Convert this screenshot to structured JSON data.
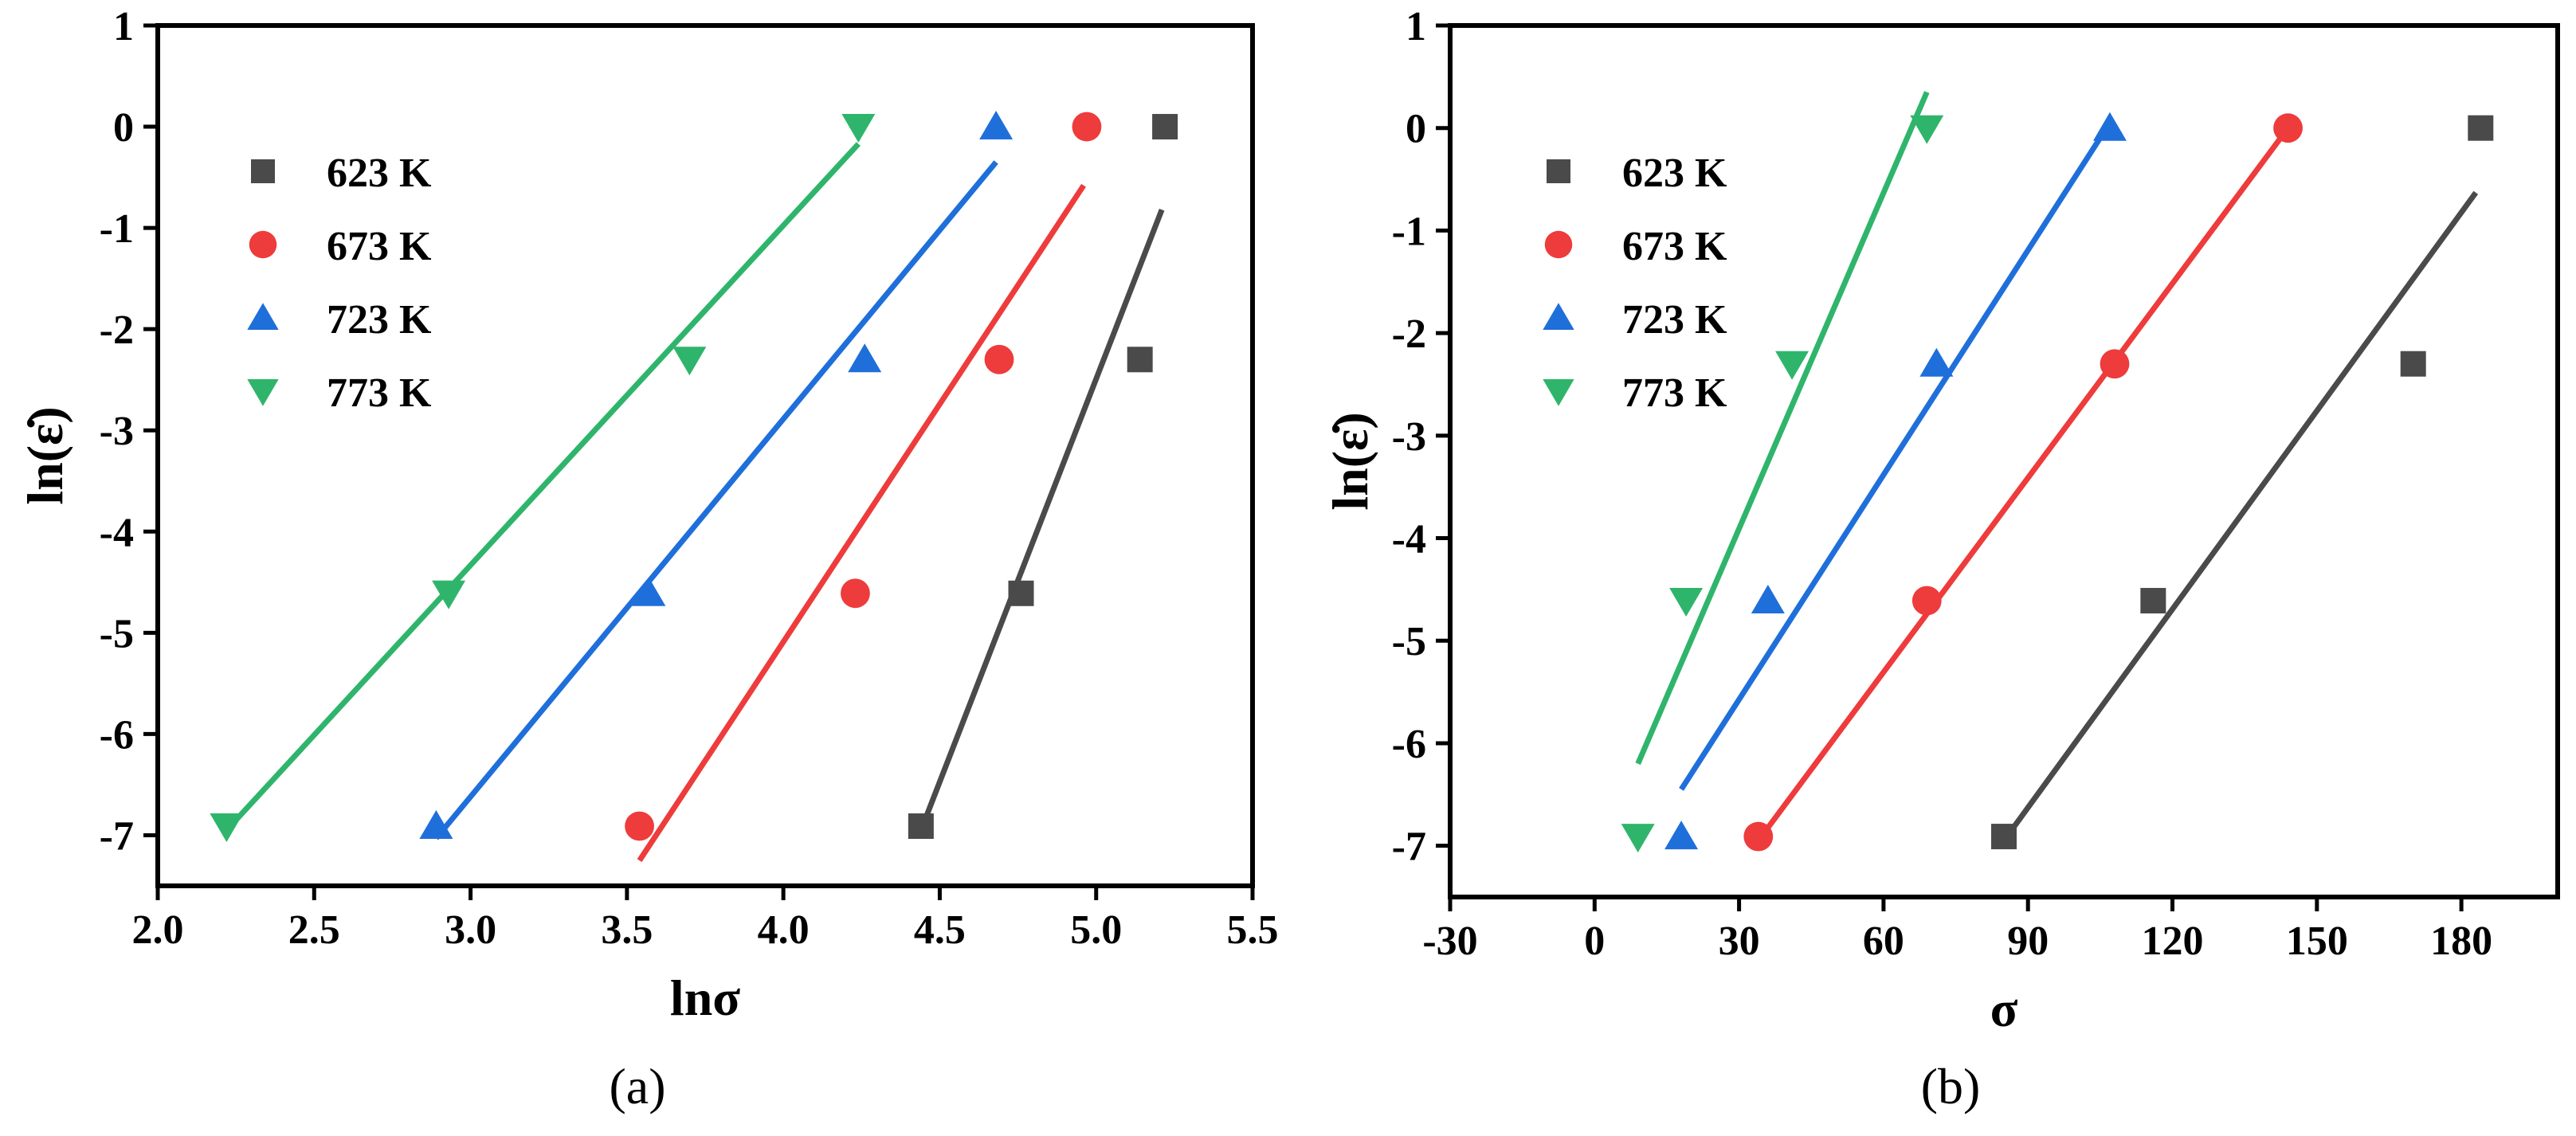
{
  "chart_data": [
    {
      "type": "scatter",
      "id": "a",
      "caption": "(a)",
      "xlabel": "lnσ",
      "ylabel": "ln(ε̇)",
      "xlim": [
        2.0,
        5.5
      ],
      "ylim": [
        -7.5,
        1.0
      ],
      "xticks": [
        2.0,
        2.5,
        3.0,
        3.5,
        4.0,
        4.5,
        5.0,
        5.5
      ],
      "xtick_labels": [
        "2.0",
        "2.5",
        "3.0",
        "3.5",
        "4.0",
        "4.5",
        "5.0",
        "5.5"
      ],
      "yticks": [
        1,
        0,
        -1,
        -2,
        -3,
        -4,
        -5,
        -6,
        -7
      ],
      "ytick_labels": [
        "1",
        "0",
        "-1",
        "-2",
        "-3",
        "-4",
        "-5",
        "-6",
        "-7"
      ],
      "legend_position": "top-left",
      "series": [
        {
          "name": "623 K",
          "color": "#4a4a4a",
          "marker": "square",
          "points": [
            [
              4.44,
              -6.91
            ],
            [
              4.76,
              -4.61
            ],
            [
              5.14,
              -2.3
            ],
            [
              5.22,
              0.0
            ]
          ],
          "fit": [
            [
              4.44,
              -6.95
            ],
            [
              5.21,
              -0.82
            ]
          ]
        },
        {
          "name": "673 K",
          "color": "#ee3b3b",
          "marker": "circle",
          "points": [
            [
              3.54,
              -6.91
            ],
            [
              4.23,
              -4.61
            ],
            [
              4.69,
              -2.3
            ],
            [
              4.97,
              0.0
            ]
          ],
          "fit": [
            [
              3.54,
              -7.25
            ],
            [
              4.96,
              -0.58
            ]
          ]
        },
        {
          "name": "723 K",
          "color": "#1f6fdb",
          "marker": "triangle-up",
          "points": [
            [
              2.89,
              -6.91
            ],
            [
              3.57,
              -4.61
            ],
            [
              4.26,
              -2.3
            ],
            [
              4.68,
              0.0
            ]
          ],
          "fit": [
            [
              2.89,
              -7.03
            ],
            [
              4.68,
              -0.35
            ]
          ]
        },
        {
          "name": "773 K",
          "color": "#2fb56b",
          "marker": "triangle-down",
          "points": [
            [
              2.22,
              -6.91
            ],
            [
              2.93,
              -4.61
            ],
            [
              3.7,
              -2.3
            ],
            [
              4.24,
              0.0
            ]
          ],
          "fit": [
            [
              2.22,
              -6.95
            ],
            [
              4.24,
              -0.17
            ]
          ]
        }
      ]
    },
    {
      "type": "scatter",
      "id": "b",
      "caption": "(b)",
      "xlabel": "σ",
      "ylabel": "ln(ε̇)",
      "xlim": [
        -30,
        200
      ],
      "ylim": [
        -7.5,
        1.0
      ],
      "xticks": [
        -30,
        0,
        30,
        60,
        90,
        120,
        150,
        180
      ],
      "xtick_labels": [
        "-30",
        "0",
        "30",
        "60",
        "90",
        "120",
        "150",
        "180"
      ],
      "yticks": [
        1,
        0,
        -1,
        -2,
        -3,
        -4,
        -5,
        -6,
        -7
      ],
      "ytick_labels": [
        "1",
        "0",
        "-1",
        "-2",
        "-3",
        "-4",
        "-5",
        "-6",
        "-7"
      ],
      "legend_position": "top-left",
      "series": [
        {
          "name": "623 K",
          "color": "#4a4a4a",
          "marker": "square",
          "points": [
            [
              85,
              -6.91
            ],
            [
              116,
              -4.61
            ],
            [
              170,
              -2.3
            ],
            [
              184,
              0.0
            ]
          ],
          "fit": [
            [
              85,
              -6.95
            ],
            [
              183,
              -0.63
            ]
          ]
        },
        {
          "name": "673 K",
          "color": "#ee3b3b",
          "marker": "circle",
          "points": [
            [
              34,
              -6.91
            ],
            [
              69,
              -4.61
            ],
            [
              108,
              -2.3
            ],
            [
              144,
              0.0
            ]
          ],
          "fit": [
            [
              34,
              -6.95
            ],
            [
              144,
              0.0
            ]
          ]
        },
        {
          "name": "723 K",
          "color": "#1f6fdb",
          "marker": "triangle-up",
          "points": [
            [
              18,
              -6.91
            ],
            [
              36,
              -4.61
            ],
            [
              71,
              -2.3
            ],
            [
              107,
              0.0
            ]
          ],
          "fit": [
            [
              18,
              -6.45
            ],
            [
              107,
              0.05
            ]
          ]
        },
        {
          "name": "773 K",
          "color": "#2fb56b",
          "marker": "triangle-down",
          "points": [
            [
              9,
              -6.91
            ],
            [
              19,
              -4.61
            ],
            [
              41,
              -2.3
            ],
            [
              69,
              0.0
            ]
          ],
          "fit": [
            [
              9,
              -6.2
            ],
            [
              69,
              0.35
            ]
          ]
        }
      ]
    }
  ]
}
